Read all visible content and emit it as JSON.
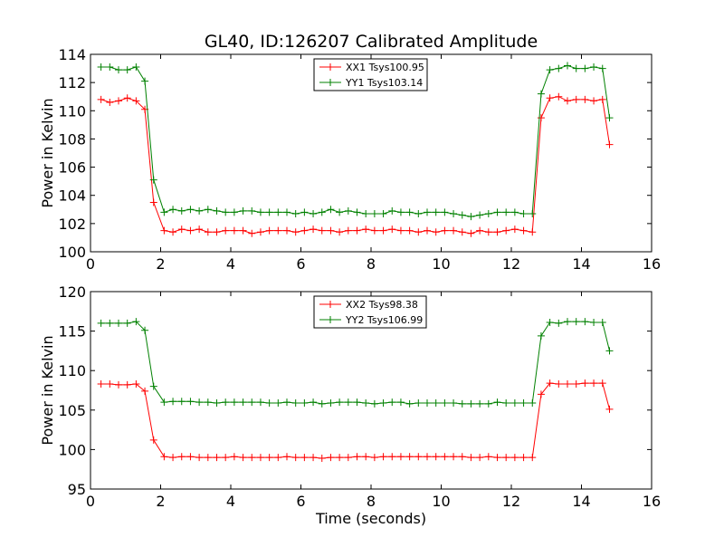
{
  "chart_data": {
    "type": "line",
    "title": "GL40, ID:126207 Calibrated Amplitude",
    "xlabel": "Time (seconds)",
    "ylabel": "Power in Kelvin",
    "x_ticks": [
      "0",
      "2",
      "4",
      "6",
      "8",
      "10",
      "12",
      "14",
      "16"
    ],
    "colors": {
      "red": "#ff0000",
      "green": "#008000"
    },
    "panels": [
      {
        "xlim": [
          0,
          16
        ],
        "ylim": [
          100,
          114
        ],
        "y_ticks": [
          "100",
          "102",
          "104",
          "106",
          "108",
          "110",
          "112",
          "114"
        ],
        "legend_position": "upper-center",
        "x": [
          0.3,
          0.55,
          0.8,
          1.05,
          1.3,
          1.55,
          1.8,
          2.1,
          2.35,
          2.6,
          2.85,
          3.1,
          3.35,
          3.6,
          3.85,
          4.1,
          4.35,
          4.6,
          4.85,
          5.1,
          5.35,
          5.6,
          5.85,
          6.1,
          6.35,
          6.6,
          6.85,
          7.1,
          7.35,
          7.6,
          7.85,
          8.1,
          8.35,
          8.6,
          8.85,
          9.1,
          9.35,
          9.6,
          9.85,
          10.1,
          10.35,
          10.6,
          10.85,
          11.1,
          11.35,
          11.6,
          11.85,
          12.1,
          12.35,
          12.6,
          12.85,
          13.1,
          13.35,
          13.6,
          13.85,
          14.1,
          14.35,
          14.6,
          14.8
        ],
        "series": [
          {
            "name": "XX1 Tsys100.95",
            "color": "#ff0000",
            "values": [
              110.8,
              110.6,
              110.7,
              110.9,
              110.7,
              110.1,
              103.5,
              101.5,
              101.4,
              101.6,
              101.5,
              101.6,
              101.4,
              101.4,
              101.5,
              101.5,
              101.5,
              101.3,
              101.4,
              101.5,
              101.5,
              101.5,
              101.4,
              101.5,
              101.6,
              101.5,
              101.5,
              101.4,
              101.5,
              101.5,
              101.6,
              101.5,
              101.5,
              101.6,
              101.5,
              101.5,
              101.4,
              101.5,
              101.4,
              101.5,
              101.5,
              101.4,
              101.3,
              101.5,
              101.4,
              101.4,
              101.5,
              101.6,
              101.5,
              101.4,
              109.5,
              110.9,
              111.0,
              110.7,
              110.8,
              110.8,
              110.7,
              110.8,
              107.6
            ]
          },
          {
            "name": "YY1 Tsys103.14",
            "color": "#008000",
            "values": [
              113.1,
              113.1,
              112.9,
              112.9,
              113.1,
              112.1,
              105.1,
              102.8,
              103.0,
              102.9,
              103.0,
              102.9,
              103.0,
              102.9,
              102.8,
              102.8,
              102.9,
              102.9,
              102.8,
              102.8,
              102.8,
              102.8,
              102.7,
              102.8,
              102.7,
              102.8,
              103.0,
              102.8,
              102.9,
              102.8,
              102.7,
              102.7,
              102.7,
              102.9,
              102.8,
              102.8,
              102.7,
              102.8,
              102.8,
              102.8,
              102.7,
              102.6,
              102.5,
              102.6,
              102.7,
              102.8,
              102.8,
              102.8,
              102.7,
              102.7,
              111.2,
              112.9,
              113.0,
              113.2,
              113.0,
              113.0,
              113.1,
              113.0,
              109.5
            ]
          }
        ]
      },
      {
        "xlim": [
          0,
          16
        ],
        "ylim": [
          95,
          120
        ],
        "y_ticks": [
          "95",
          "100",
          "105",
          "110",
          "115",
          "120"
        ],
        "legend_position": "upper-center",
        "x": [
          0.3,
          0.55,
          0.8,
          1.05,
          1.3,
          1.55,
          1.8,
          2.1,
          2.35,
          2.6,
          2.85,
          3.1,
          3.35,
          3.6,
          3.85,
          4.1,
          4.35,
          4.6,
          4.85,
          5.1,
          5.35,
          5.6,
          5.85,
          6.1,
          6.35,
          6.6,
          6.85,
          7.1,
          7.35,
          7.6,
          7.85,
          8.1,
          8.35,
          8.6,
          8.85,
          9.1,
          9.35,
          9.6,
          9.85,
          10.1,
          10.35,
          10.6,
          10.85,
          11.1,
          11.35,
          11.6,
          11.85,
          12.1,
          12.35,
          12.6,
          12.85,
          13.1,
          13.35,
          13.6,
          13.85,
          14.1,
          14.35,
          14.6,
          14.8
        ],
        "series": [
          {
            "name": "XX2 Tsys98.38",
            "color": "#ff0000",
            "values": [
              108.3,
              108.3,
              108.2,
              108.2,
              108.3,
              107.4,
              101.2,
              99.1,
              99.0,
              99.1,
              99.1,
              99.0,
              99.0,
              99.0,
              99.0,
              99.1,
              99.0,
              99.0,
              99.0,
              99.0,
              99.0,
              99.1,
              99.0,
              99.0,
              99.0,
              98.9,
              99.0,
              99.0,
              99.0,
              99.1,
              99.1,
              99.0,
              99.1,
              99.1,
              99.1,
              99.1,
              99.1,
              99.1,
              99.1,
              99.1,
              99.1,
              99.1,
              99.0,
              99.0,
              99.1,
              99.0,
              99.0,
              99.0,
              99.0,
              99.0,
              107.0,
              108.4,
              108.3,
              108.3,
              108.3,
              108.4,
              108.4,
              108.4,
              105.1
            ]
          },
          {
            "name": "YY2 Tsys106.99",
            "color": "#008000",
            "values": [
              116.0,
              116.0,
              116.0,
              116.0,
              116.2,
              115.1,
              108.0,
              106.0,
              106.1,
              106.1,
              106.1,
              106.0,
              106.0,
              105.9,
              106.0,
              106.0,
              106.0,
              106.0,
              106.0,
              105.9,
              105.9,
              106.0,
              105.9,
              105.9,
              106.0,
              105.8,
              105.9,
              106.0,
              106.0,
              106.0,
              105.9,
              105.8,
              105.9,
              106.0,
              106.0,
              105.8,
              105.9,
              105.9,
              105.9,
              105.9,
              105.9,
              105.8,
              105.8,
              105.8,
              105.8,
              106.0,
              105.9,
              105.9,
              105.9,
              105.9,
              114.4,
              116.1,
              116.0,
              116.2,
              116.2,
              116.2,
              116.1,
              116.1,
              112.5
            ]
          }
        ]
      }
    ]
  }
}
